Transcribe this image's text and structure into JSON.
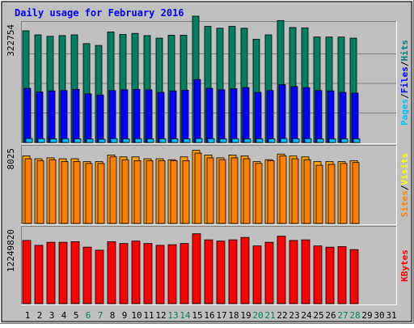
{
  "chart_data": {
    "type": "bar",
    "title": "Daily usage for February 2016",
    "days": [
      "1",
      "2",
      "3",
      "4",
      "5",
      "6",
      "7",
      "8",
      "9",
      "10",
      "11",
      "12",
      "13",
      "14",
      "15",
      "16",
      "17",
      "18",
      "19",
      "20",
      "21",
      "22",
      "23",
      "24",
      "25",
      "26",
      "27",
      "28",
      "29",
      "30",
      "31"
    ],
    "weekend_days": [
      6,
      7,
      13,
      14,
      20,
      21,
      27,
      28
    ],
    "panels": [
      {
        "id": "hits-files-pages",
        "ymax_label": "322754",
        "ymax": 322754,
        "legend": [
          {
            "text": "Pages",
            "color": "#00c0ff"
          },
          {
            "text": "/",
            "color": "#000000"
          },
          {
            "text": "Files",
            "color": "#0000ff"
          },
          {
            "text": "/",
            "color": "#000000"
          },
          {
            "text": "Hits",
            "color": "#008080"
          }
        ],
        "series": [
          {
            "name": "Hits",
            "color": "#008060",
            "values": [
              305000,
              294000,
              290000,
              292000,
              294000,
              270000,
              265000,
              302000,
              295000,
              298000,
              292000,
              285000,
              293000,
              293000,
              345000,
              317000,
              312000,
              317000,
              312000,
              282000,
              294000,
              333000,
              314000,
              313000,
              288000,
              288000,
              288000,
              285000
            ]
          },
          {
            "name": "Files",
            "color": "#0000ff",
            "values": [
              148000,
              138000,
              141000,
              142000,
              145000,
              133000,
              130000,
              142000,
              144000,
              145000,
              144000,
              137000,
              141000,
              143000,
              172000,
              148000,
              144000,
              147000,
              150000,
              137000,
              142000,
              158000,
              153000,
              150000,
              142000,
              141000,
              137000,
              135000
            ]
          },
          {
            "name": "Pages",
            "color": "#00c0ff",
            "values": [
              11000,
              10500,
              10000,
              10500,
              10000,
              9500,
              9000,
              10500,
              10000,
              10500,
              10000,
              10000,
              10000,
              10000,
              11000,
              10500,
              10000,
              10500,
              10000,
              10000,
              10000,
              11000,
              10500,
              10500,
              10000,
              10000,
              10000,
              10000
            ]
          }
        ]
      },
      {
        "id": "visits-sites",
        "ymax_label": "8025",
        "ymax": 8025,
        "legend": [
          {
            "text": "Sites",
            "color": "#ff8000"
          },
          {
            "text": "/",
            "color": "#000000"
          },
          {
            "text": "Visits",
            "color": "#ffff00"
          }
        ],
        "series": [
          {
            "name": "Visits",
            "color": "#ffa000",
            "values": [
              7200,
              6900,
              7000,
              6900,
              6900,
              6600,
              6600,
              7300,
              7100,
              7100,
              6900,
              6900,
              6800,
              7100,
              7800,
              7300,
              7000,
              7300,
              7200,
              6600,
              6800,
              7400,
              7200,
              7100,
              6600,
              6600,
              6600,
              6700
            ]
          },
          {
            "name": "Sites",
            "color": "#ff8000",
            "values": [
              6900,
              6700,
              6800,
              6600,
              6600,
              6400,
              6400,
              7100,
              6800,
              6700,
              6700,
              6700,
              6700,
              6700,
              7500,
              7000,
              6800,
              7000,
              6900,
              6400,
              6700,
              7200,
              6900,
              6800,
              6200,
              6300,
              6400,
              6500
            ]
          }
        ]
      },
      {
        "id": "kbytes",
        "ymax_label": "12249820",
        "ymax": 12249820,
        "legend": [
          {
            "text": "KBytes",
            "color": "#ff0000"
          }
        ],
        "series": [
          {
            "name": "KBytes",
            "color": "#ff0000",
            "values": [
              10400,
              9600,
              10100,
              10100,
              10200,
              9300,
              8800,
              10200,
              9900,
              10300,
              9900,
              9600,
              9700,
              9900,
              11500,
              10500,
              10300,
              10500,
              10900,
              9500,
              10100,
              11100,
              10400,
              10500,
              9500,
              9300,
              9400,
              8900
            ],
            "scale_note": "units of 1000 KBytes"
          }
        ]
      }
    ]
  }
}
